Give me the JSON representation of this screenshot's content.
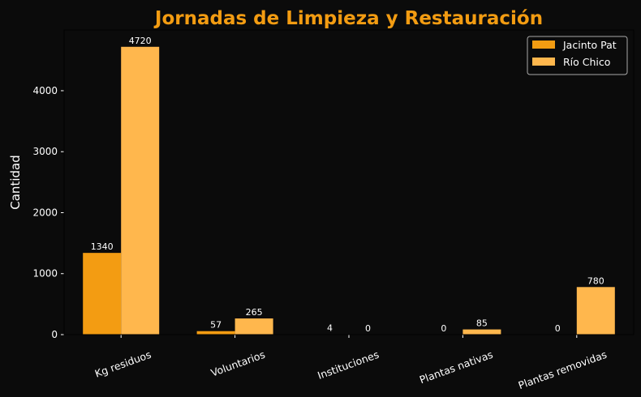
{
  "chart_data": {
    "type": "bar",
    "title": "Jornadas de Limpieza y Restauración",
    "xlabel": "",
    "ylabel": "Cantidad",
    "categories": [
      "Kg residuos",
      "Voluntarios",
      "Instituciones",
      "Plantas nativas",
      "Plantas removidas"
    ],
    "series": [
      {
        "name": "Jacinto Pat",
        "values": [
          1340,
          57,
          4,
          0,
          0
        ],
        "color": "#f39c12"
      },
      {
        "name": "Río Chico",
        "values": [
          4720,
          265,
          0,
          85,
          780
        ],
        "color": "#ffb74d"
      }
    ],
    "ylim": [
      0,
      4996
    ],
    "yticks": [
      0,
      1000,
      2000,
      3000,
      4000
    ],
    "legend": "top-right",
    "grid": false,
    "title_color": "#f39c12"
  }
}
